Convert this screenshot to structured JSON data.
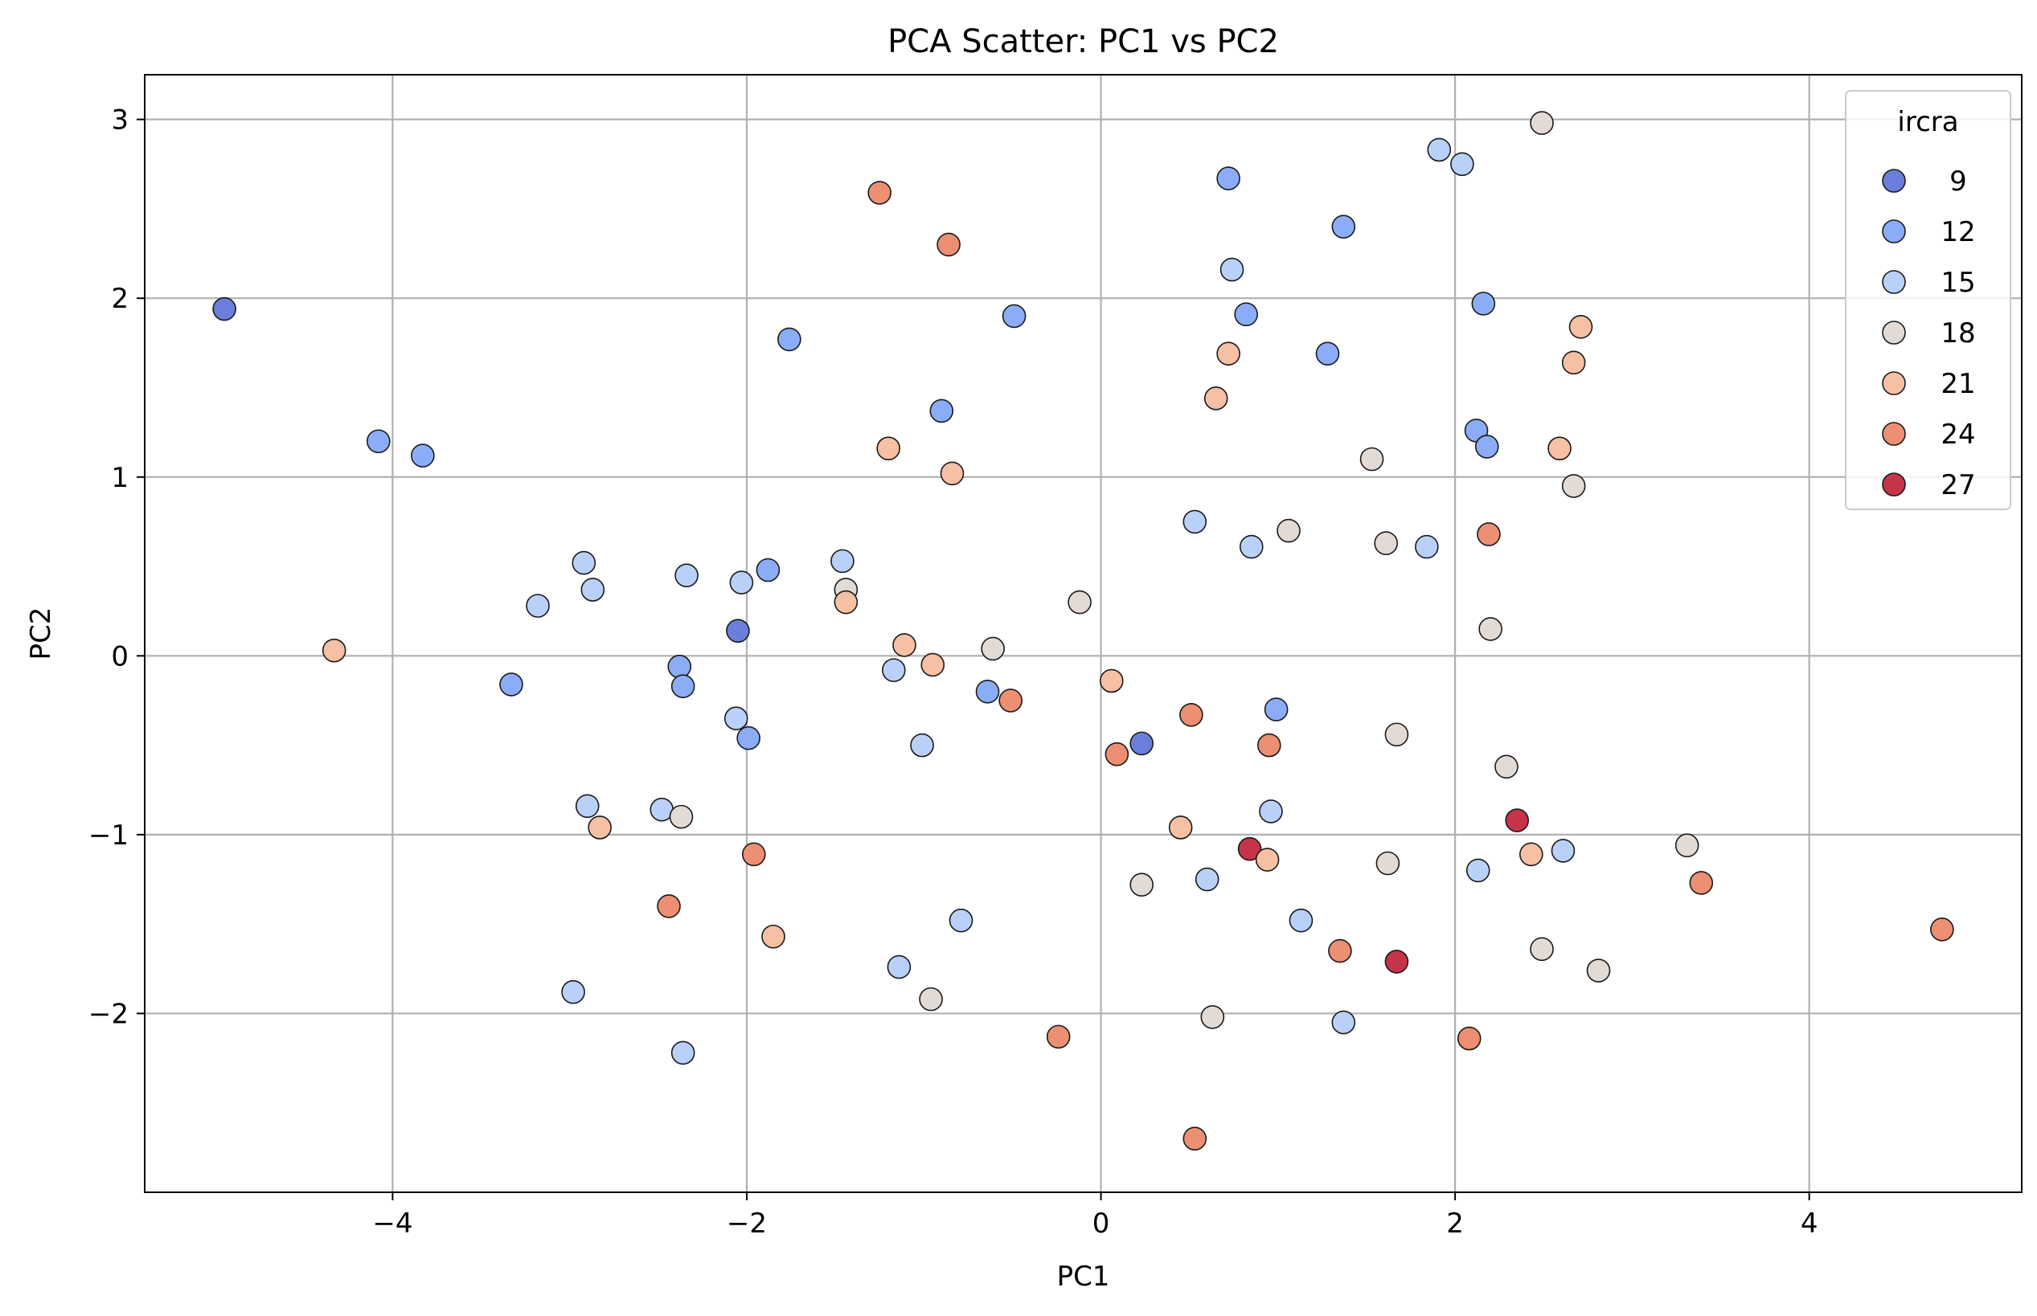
{
  "chart_data": {
    "type": "scatter",
    "title": "PCA Scatter: PC1 vs PC2",
    "xlabel": "PC1",
    "ylabel": "PC2",
    "xlim": [
      -5.4,
      5.2
    ],
    "ylim": [
      -3.0,
      3.25
    ],
    "xticks": [
      -4,
      -2,
      0,
      2,
      4
    ],
    "yticks": [
      -2,
      -1,
      0,
      1,
      2,
      3
    ],
    "xtick_labels": [
      "−4",
      "−2",
      "0",
      "2",
      "4"
    ],
    "ytick_labels": [
      "−2",
      "−1",
      "0",
      "1",
      "2",
      "3"
    ],
    "grid": true,
    "legend": {
      "title": "ircra",
      "placement": "top-right",
      "entries": [
        {
          "label": "9",
          "color": "#6a7fdb"
        },
        {
          "label": "12",
          "color": "#8badf7"
        },
        {
          "label": "15",
          "color": "#b9d0f9"
        },
        {
          "label": "18",
          "color": "#e2dad5"
        },
        {
          "label": "21",
          "color": "#f5c0a3"
        },
        {
          "label": "24",
          "color": "#ec8f72"
        },
        {
          "label": "27",
          "color": "#c6344a"
        }
      ]
    },
    "points": [
      {
        "x": -4.95,
        "y": 1.94,
        "c": "9"
      },
      {
        "x": -4.08,
        "y": 1.2,
        "c": "12"
      },
      {
        "x": -3.83,
        "y": 1.12,
        "c": "12"
      },
      {
        "x": -4.33,
        "y": 0.03,
        "c": "21"
      },
      {
        "x": -3.33,
        "y": -0.16,
        "c": "12"
      },
      {
        "x": -3.18,
        "y": 0.28,
        "c": "15"
      },
      {
        "x": -2.92,
        "y": 0.52,
        "c": "15"
      },
      {
        "x": -2.87,
        "y": 0.37,
        "c": "15"
      },
      {
        "x": -2.9,
        "y": -0.84,
        "c": "15"
      },
      {
        "x": -2.83,
        "y": -0.96,
        "c": "21"
      },
      {
        "x": -2.98,
        "y": -1.88,
        "c": "15"
      },
      {
        "x": -2.48,
        "y": -0.86,
        "c": "15"
      },
      {
        "x": -2.37,
        "y": -0.9,
        "c": "18"
      },
      {
        "x": -2.44,
        "y": -1.4,
        "c": "24"
      },
      {
        "x": -2.36,
        "y": -2.22,
        "c": "15"
      },
      {
        "x": -2.34,
        "y": 0.45,
        "c": "15"
      },
      {
        "x": -2.38,
        "y": -0.06,
        "c": "12"
      },
      {
        "x": -2.36,
        "y": -0.17,
        "c": "12"
      },
      {
        "x": -2.05,
        "y": 0.14,
        "c": "9"
      },
      {
        "x": -2.03,
        "y": 0.41,
        "c": "15"
      },
      {
        "x": -2.06,
        "y": -0.35,
        "c": "15"
      },
      {
        "x": -1.99,
        "y": -0.46,
        "c": "12"
      },
      {
        "x": -1.96,
        "y": -1.11,
        "c": "24"
      },
      {
        "x": -1.88,
        "y": 0.48,
        "c": "12"
      },
      {
        "x": -1.85,
        "y": -1.57,
        "c": "21"
      },
      {
        "x": -1.76,
        "y": 1.77,
        "c": "12"
      },
      {
        "x": -1.46,
        "y": 0.53,
        "c": "15"
      },
      {
        "x": -1.44,
        "y": 0.37,
        "c": "18"
      },
      {
        "x": -1.44,
        "y": 0.3,
        "c": "21"
      },
      {
        "x": -1.25,
        "y": 2.59,
        "c": "24"
      },
      {
        "x": -1.2,
        "y": 1.16,
        "c": "21"
      },
      {
        "x": -1.17,
        "y": -0.08,
        "c": "15"
      },
      {
        "x": -1.11,
        "y": 0.06,
        "c": "21"
      },
      {
        "x": -1.14,
        "y": -1.74,
        "c": "15"
      },
      {
        "x": -1.01,
        "y": -0.5,
        "c": "15"
      },
      {
        "x": -0.95,
        "y": -0.05,
        "c": "21"
      },
      {
        "x": -0.96,
        "y": -1.92,
        "c": "18"
      },
      {
        "x": -0.9,
        "y": 1.37,
        "c": "12"
      },
      {
        "x": -0.86,
        "y": 2.3,
        "c": "24"
      },
      {
        "x": -0.84,
        "y": 1.02,
        "c": "21"
      },
      {
        "x": -0.79,
        "y": -1.48,
        "c": "15"
      },
      {
        "x": -0.64,
        "y": -0.2,
        "c": "12"
      },
      {
        "x": -0.61,
        "y": 0.04,
        "c": "18"
      },
      {
        "x": -0.51,
        "y": -0.25,
        "c": "24"
      },
      {
        "x": -0.49,
        "y": 1.9,
        "c": "12"
      },
      {
        "x": -0.24,
        "y": -2.13,
        "c": "24"
      },
      {
        "x": -0.12,
        "y": 0.3,
        "c": "18"
      },
      {
        "x": 0.06,
        "y": -0.14,
        "c": "21"
      },
      {
        "x": 0.09,
        "y": -0.55,
        "c": "24"
      },
      {
        "x": 0.23,
        "y": -0.49,
        "c": "9"
      },
      {
        "x": 0.23,
        "y": -1.28,
        "c": "18"
      },
      {
        "x": 0.45,
        "y": -0.96,
        "c": "21"
      },
      {
        "x": 0.51,
        "y": -0.33,
        "c": "24"
      },
      {
        "x": 0.53,
        "y": 0.75,
        "c": "15"
      },
      {
        "x": 0.53,
        "y": -2.7,
        "c": "24"
      },
      {
        "x": 0.6,
        "y": -1.25,
        "c": "15"
      },
      {
        "x": 0.63,
        "y": -2.02,
        "c": "18"
      },
      {
        "x": 0.65,
        "y": 1.44,
        "c": "21"
      },
      {
        "x": 0.72,
        "y": 2.67,
        "c": "12"
      },
      {
        "x": 0.72,
        "y": 1.69,
        "c": "21"
      },
      {
        "x": 0.74,
        "y": 2.16,
        "c": "15"
      },
      {
        "x": 0.82,
        "y": 1.91,
        "c": "12"
      },
      {
        "x": 0.84,
        "y": -1.08,
        "c": "27"
      },
      {
        "x": 0.85,
        "y": 0.61,
        "c": "15"
      },
      {
        "x": 0.95,
        "y": -0.5,
        "c": "24"
      },
      {
        "x": 0.94,
        "y": -1.14,
        "c": "21"
      },
      {
        "x": 0.96,
        "y": -0.87,
        "c": "15"
      },
      {
        "x": 0.99,
        "y": -0.3,
        "c": "12"
      },
      {
        "x": 1.06,
        "y": 0.7,
        "c": "18"
      },
      {
        "x": 1.13,
        "y": -1.48,
        "c": "15"
      },
      {
        "x": 1.28,
        "y": 1.69,
        "c": "12"
      },
      {
        "x": 1.35,
        "y": -1.65,
        "c": "24"
      },
      {
        "x": 1.37,
        "y": -2.05,
        "c": "15"
      },
      {
        "x": 1.37,
        "y": 2.4,
        "c": "12"
      },
      {
        "x": 1.53,
        "y": 1.1,
        "c": "18"
      },
      {
        "x": 1.61,
        "y": 0.63,
        "c": "18"
      },
      {
        "x": 1.62,
        "y": -1.16,
        "c": "18"
      },
      {
        "x": 1.67,
        "y": -0.44,
        "c": "18"
      },
      {
        "x": 1.67,
        "y": -1.71,
        "c": "27"
      },
      {
        "x": 1.84,
        "y": 0.61,
        "c": "15"
      },
      {
        "x": 1.91,
        "y": 2.83,
        "c": "15"
      },
      {
        "x": 2.04,
        "y": 2.75,
        "c": "15"
      },
      {
        "x": 2.08,
        "y": -2.14,
        "c": "24"
      },
      {
        "x": 2.12,
        "y": 1.26,
        "c": "12"
      },
      {
        "x": 2.13,
        "y": -1.2,
        "c": "15"
      },
      {
        "x": 2.16,
        "y": 1.97,
        "c": "12"
      },
      {
        "x": 2.18,
        "y": 1.17,
        "c": "12"
      },
      {
        "x": 2.19,
        "y": 0.68,
        "c": "24"
      },
      {
        "x": 2.2,
        "y": 0.15,
        "c": "18"
      },
      {
        "x": 2.29,
        "y": -0.62,
        "c": "18"
      },
      {
        "x": 2.35,
        "y": -0.92,
        "c": "27"
      },
      {
        "x": 2.43,
        "y": -1.11,
        "c": "21"
      },
      {
        "x": 2.49,
        "y": 2.98,
        "c": "18"
      },
      {
        "x": 2.49,
        "y": -1.64,
        "c": "18"
      },
      {
        "x": 2.59,
        "y": 1.16,
        "c": "21"
      },
      {
        "x": 2.61,
        "y": -1.09,
        "c": "15"
      },
      {
        "x": 2.67,
        "y": 1.64,
        "c": "21"
      },
      {
        "x": 2.67,
        "y": 0.95,
        "c": "18"
      },
      {
        "x": 2.71,
        "y": 1.84,
        "c": "21"
      },
      {
        "x": 2.81,
        "y": -1.76,
        "c": "18"
      },
      {
        "x": 3.31,
        "y": -1.06,
        "c": "18"
      },
      {
        "x": 3.39,
        "y": -1.27,
        "c": "24"
      },
      {
        "x": 4.75,
        "y": -1.53,
        "c": "24"
      }
    ]
  }
}
